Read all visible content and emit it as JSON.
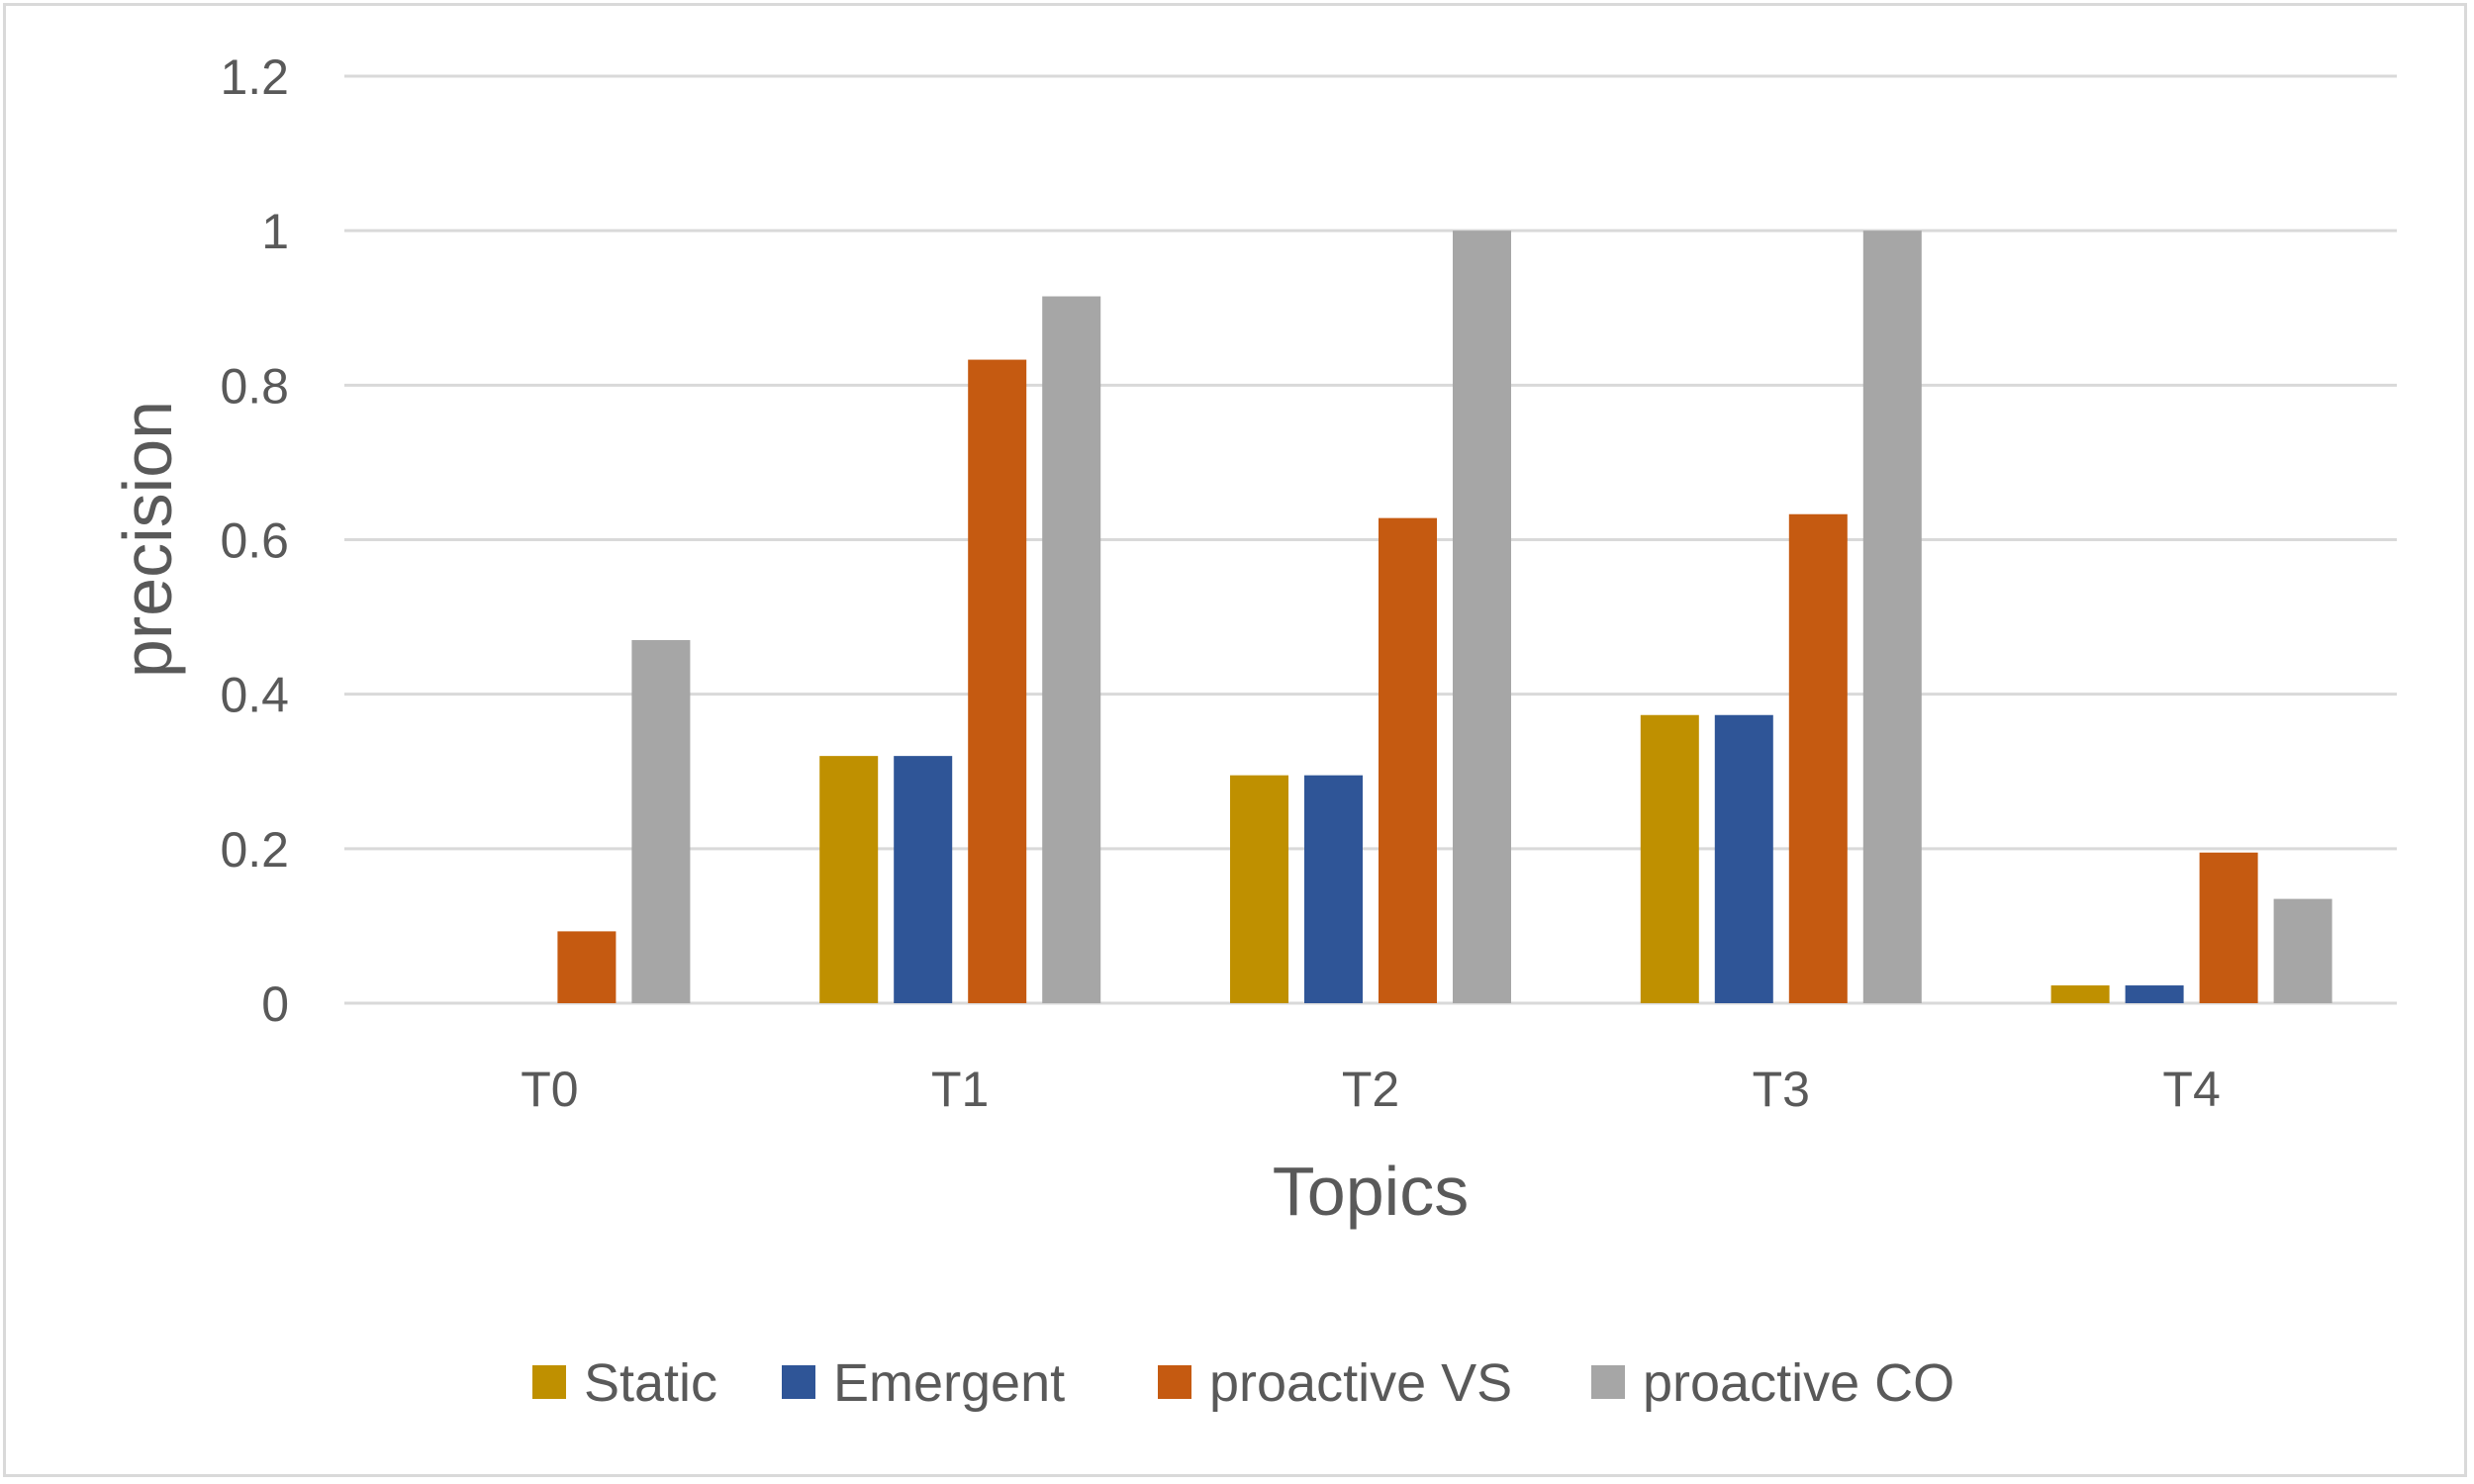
{
  "chart_data": {
    "type": "bar",
    "title": "",
    "xlabel": "Topics",
    "ylabel": "precision",
    "categories": [
      "T0",
      "T1",
      "T2",
      "T3",
      "T4"
    ],
    "ylim": [
      0,
      1.2
    ],
    "yticks": [
      0,
      0.2,
      0.4,
      0.6,
      0.8,
      1,
      1.2
    ],
    "ytick_labels": [
      "0",
      "0.2",
      "0.4",
      "0.6",
      "0.8",
      "1",
      "1.2"
    ],
    "grid": true,
    "legend_position": "bottom",
    "series": [
      {
        "name": "Static",
        "color": "#bf9000",
        "values": [
          0,
          0.32,
          0.295,
          0.373,
          0.023
        ]
      },
      {
        "name": "Emergent",
        "color": "#2f5597",
        "values": [
          0,
          0.32,
          0.295,
          0.373,
          0.023
        ]
      },
      {
        "name": "proactive VS",
        "color": "#c55a11",
        "values": [
          0.093,
          0.833,
          0.628,
          0.633,
          0.195
        ]
      },
      {
        "name": "proactive CO",
        "color": "#a6a6a6",
        "values": [
          0.47,
          0.915,
          1.0,
          1.0,
          0.135
        ]
      }
    ]
  }
}
